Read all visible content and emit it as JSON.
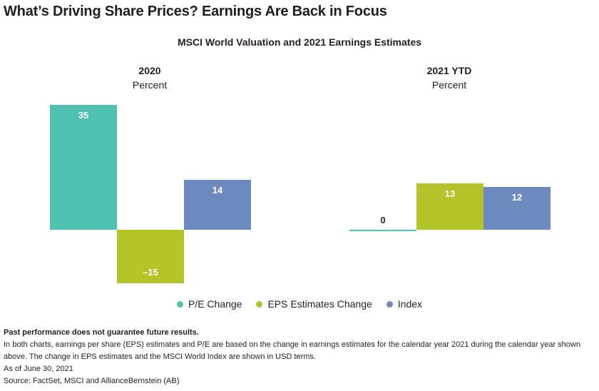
{
  "headline": "What’s Driving Share Prices? Earnings Are Back in Focus",
  "subtitle": "MSCI World Valuation and 2021 Earnings Estimates",
  "colors": {
    "pe": "#4fc1b0",
    "eps": "#b3c428",
    "index": "#6d8abf"
  },
  "chart_data": [
    {
      "type": "bar",
      "title": "2020",
      "ylabel": "Percent",
      "categories": [
        "P/E Change",
        "EPS Estimates Change",
        "Index"
      ],
      "values": [
        35,
        -15,
        14
      ],
      "value_labels": [
        "35",
        "–15",
        "14"
      ]
    },
    {
      "type": "bar",
      "title": "2021 YTD",
      "ylabel": "Percent",
      "categories": [
        "P/E Change",
        "EPS Estimates Change",
        "Index"
      ],
      "values": [
        0,
        13,
        12
      ],
      "value_labels": [
        "0",
        "13",
        "12"
      ]
    }
  ],
  "legend": [
    "P/E Change",
    "EPS Estimates Change",
    "Index"
  ],
  "notes": {
    "disclaimer": "Past performance does not guarantee future results.",
    "line1": "In both charts, earnings per share (EPS) estimates and P/E are based on the change in earnings estimates for the calendar year 2021 during the calendar year shown above. The change in EPS estimates and the MSCI World Index are shown in USD terms.",
    "as_of": "As of June 30, 2021",
    "source": "Source: FactSet, MSCI and AllianceBernstein (AB)"
  }
}
